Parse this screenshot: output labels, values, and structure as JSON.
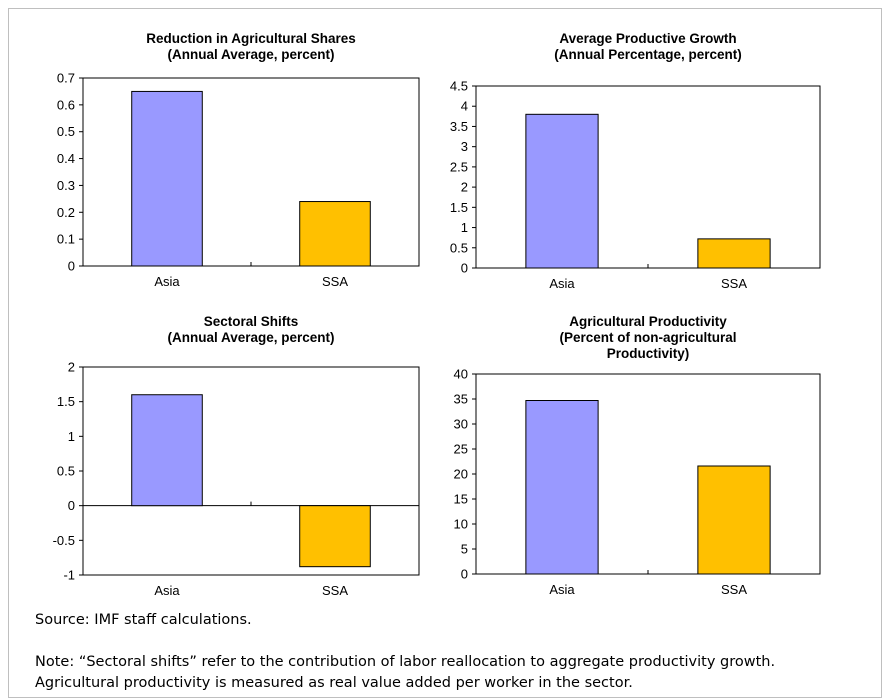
{
  "colors": {
    "asia": "#9999ff",
    "ssa": "#ffc000"
  },
  "source": "Source: IMF staff calculations.",
  "note_lines": [
    "Note: “Sectoral shifts” refer to the contribution of labor reallocation to aggregate productivity growth.",
    "Agricultural productivity is measured as real value added per worker in the sector."
  ],
  "chart_data": [
    {
      "type": "bar",
      "title_lines": [
        "Reduction in Agricultural Shares",
        "(Annual Average, percent)"
      ],
      "categories": [
        "Asia",
        "SSA"
      ],
      "values": [
        0.65,
        0.24
      ],
      "ylim": [
        0,
        0.7
      ],
      "yticks": [
        "0",
        "0.1",
        "0.2",
        "0.3",
        "0.4",
        "0.5",
        "0.6",
        "0.7"
      ],
      "xlabel": "",
      "ylabel": "",
      "grid": false
    },
    {
      "type": "bar",
      "title_lines": [
        "Average Productive Growth",
        "(Annual Percentage, percent)"
      ],
      "categories": [
        "Asia",
        "SSA"
      ],
      "values": [
        3.8,
        0.72
      ],
      "ylim": [
        0,
        4.5
      ],
      "yticks": [
        "0",
        "0.5",
        "1",
        "1.5",
        "2",
        "2.5",
        "3",
        "3.5",
        "4",
        "4.5"
      ],
      "xlabel": "",
      "ylabel": "",
      "grid": false
    },
    {
      "type": "bar",
      "title_lines": [
        "Sectoral Shifts",
        "(Annual Average, percent)"
      ],
      "categories": [
        "Asia",
        "SSA"
      ],
      "values": [
        1.6,
        -0.88
      ],
      "ylim": [
        -1,
        2
      ],
      "yticks": [
        "-1",
        "-0.5",
        "0",
        "0.5",
        "1",
        "1.5",
        "2"
      ],
      "xlabel": "",
      "ylabel": "",
      "grid": false
    },
    {
      "type": "bar",
      "title_lines": [
        "Agricultural Productivity",
        "(Percent of non-agricultural",
        "Productivity)"
      ],
      "categories": [
        "Asia",
        "SSA"
      ],
      "values": [
        34.7,
        21.6
      ],
      "ylim": [
        0,
        40
      ],
      "yticks": [
        "0",
        "5",
        "10",
        "15",
        "20",
        "25",
        "30",
        "35",
        "40"
      ],
      "xlabel": "",
      "ylabel": "",
      "grid": false
    }
  ]
}
